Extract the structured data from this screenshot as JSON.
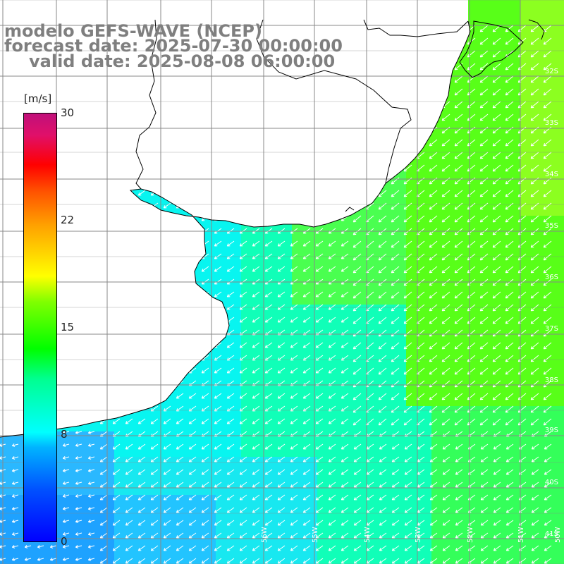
{
  "title": {
    "line1": "modelo GEFS-WAVE (NCEP)",
    "line2": "forecast date: 2025-07-30 00:00:00",
    "line3": "valid date: 2025-08-08 06:00:00"
  },
  "colorbar": {
    "unit": "[m/s]",
    "min": 0,
    "max": 30,
    "ticks": [
      "30",
      "22",
      "15",
      "8",
      "0"
    ],
    "colors": {
      "low": "#0000ff",
      "mid_low": "#00ffff",
      "mid": "#00ff00",
      "mid_high": "#ffff00",
      "high": "#ff0000",
      "top": "#c0107a"
    }
  },
  "map": {
    "land_color": "#ffffff",
    "grid_color": "#888888",
    "coastline_color": "#000000",
    "arrow_color": "#ffffff",
    "lat_labels": [
      "32S",
      "33S",
      "34S",
      "35S",
      "36S",
      "37S",
      "38S",
      "39S",
      "40S",
      "41S"
    ],
    "lon_labels": [
      "56W",
      "55W",
      "54W",
      "53W",
      "52W",
      "51W",
      "50W"
    ]
  }
}
